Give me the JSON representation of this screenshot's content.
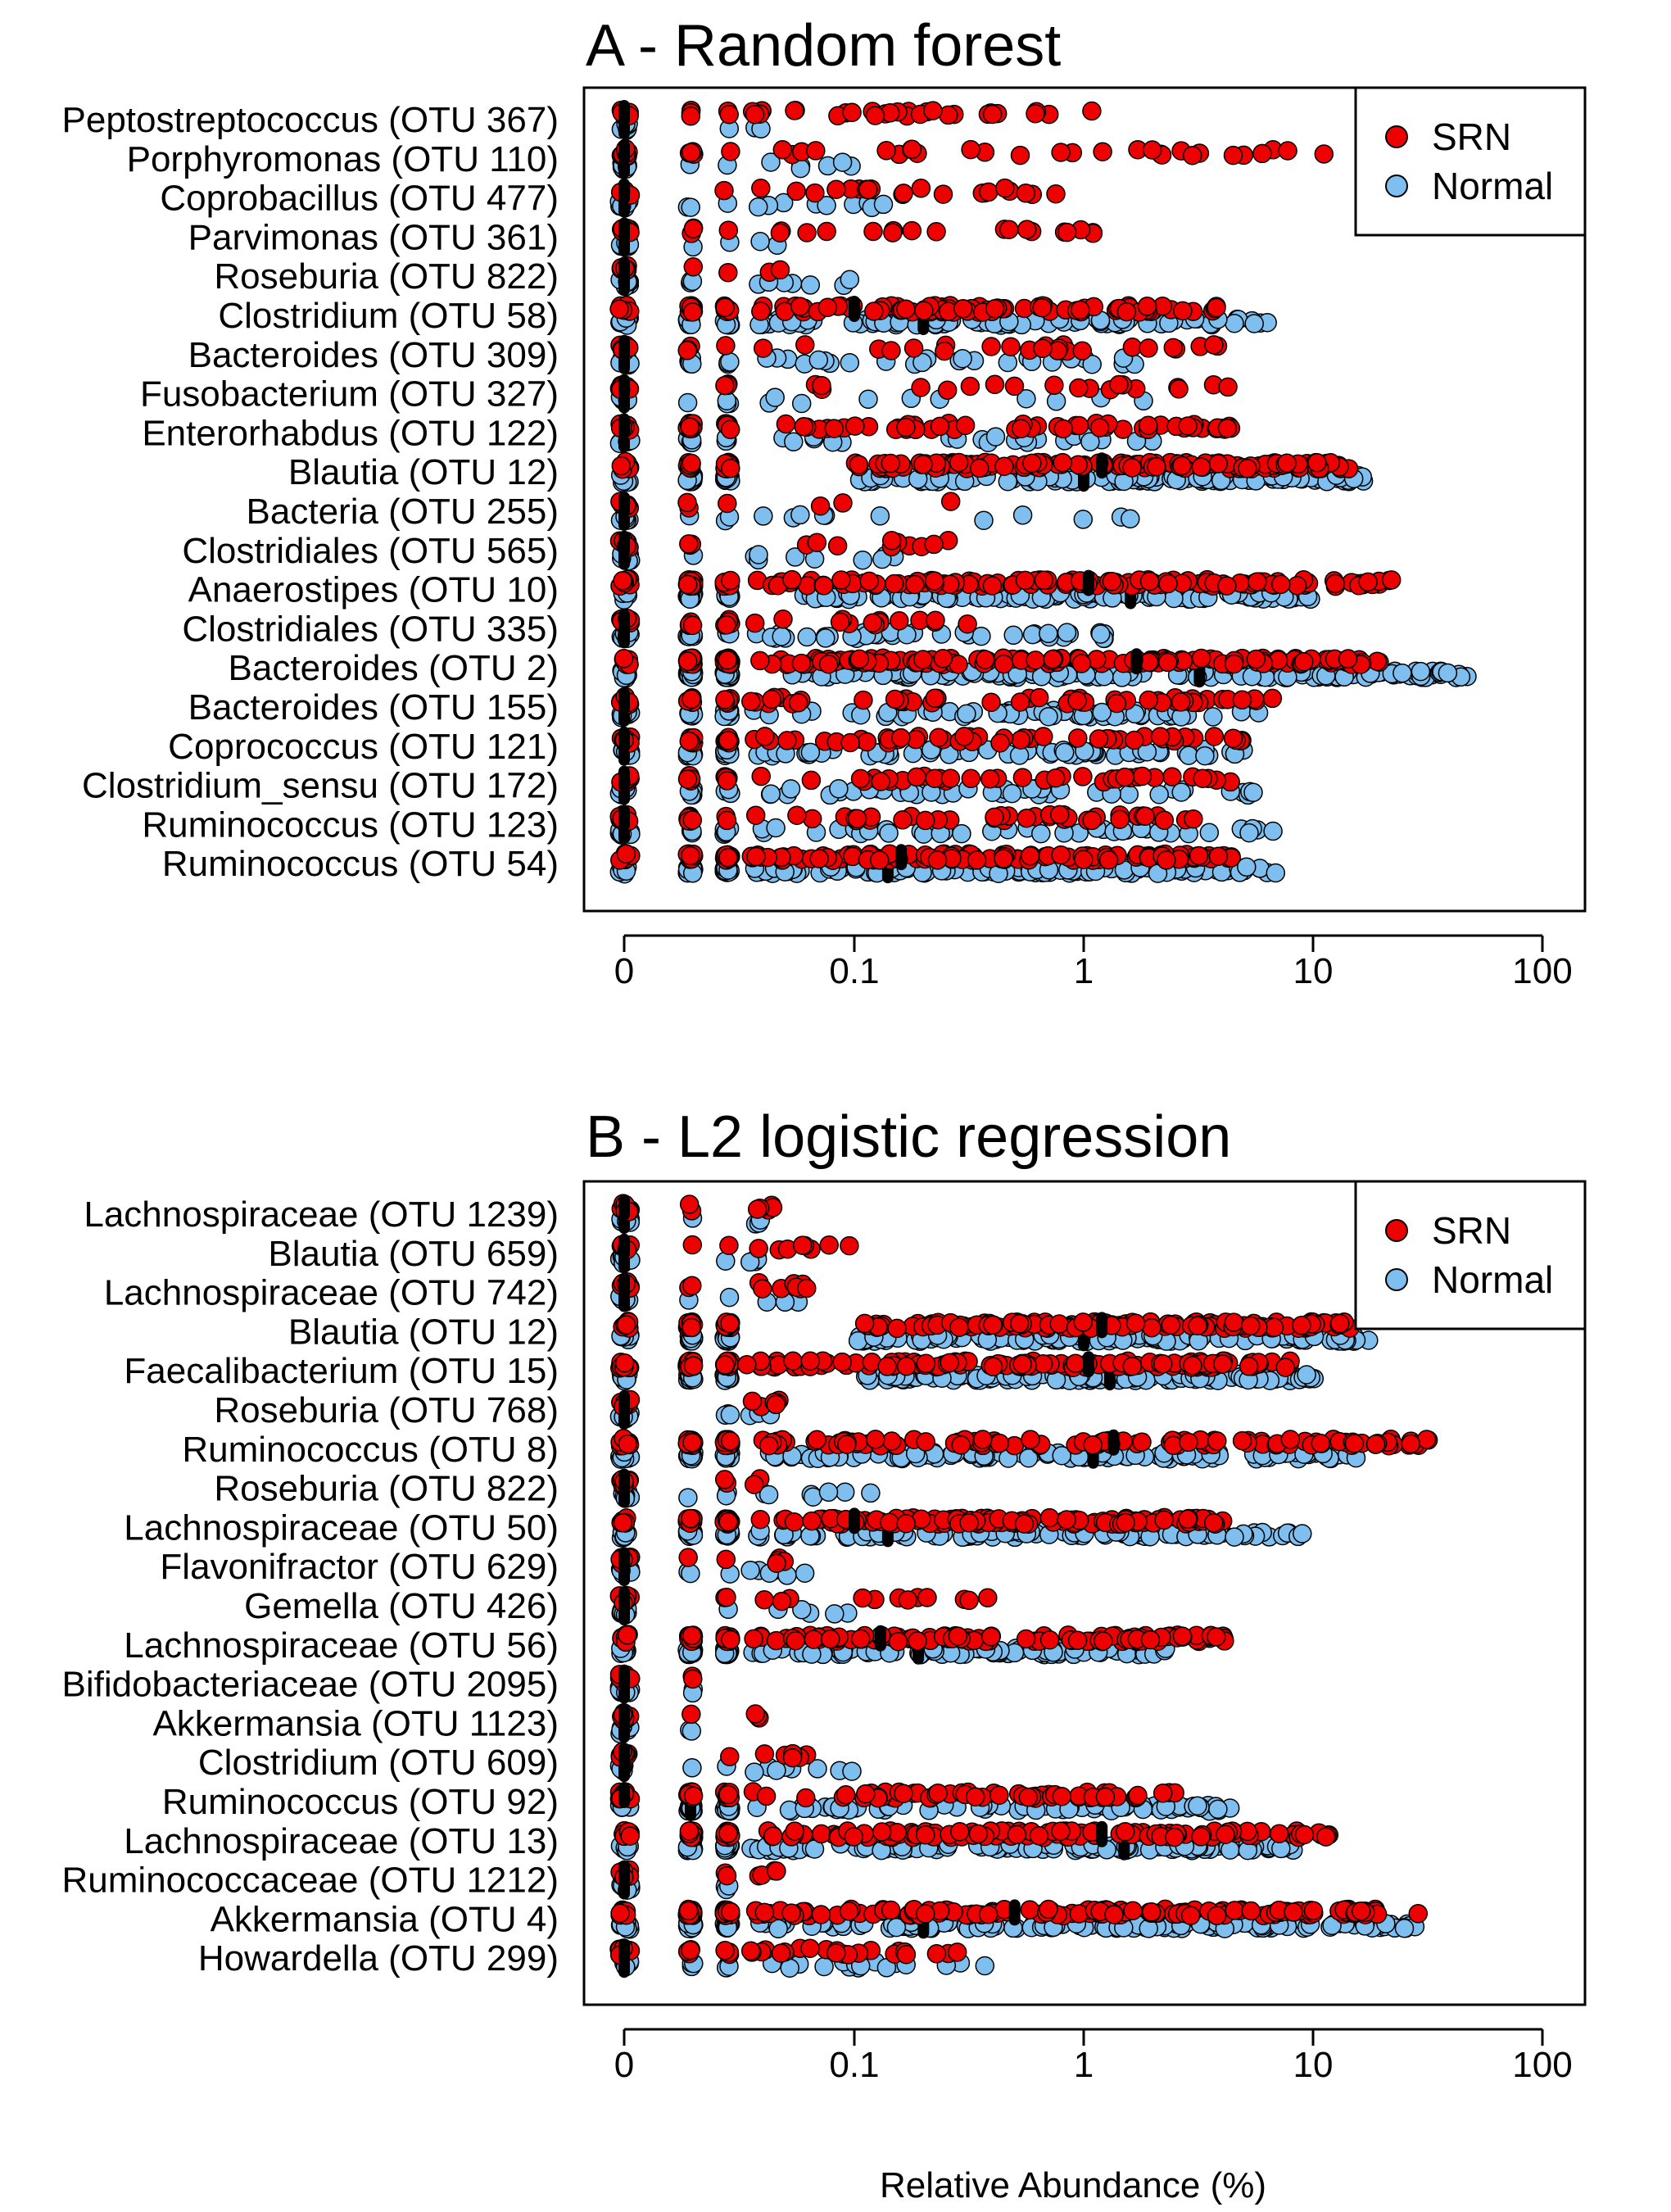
{
  "colors": {
    "srn": "#ee0000",
    "normal": "#7fbfef",
    "median": "#000000",
    "outline": "#000000"
  },
  "chart_data": [
    {
      "type": "scatter",
      "title": "A - Random forest",
      "xlabel": "",
      "xscale": "log",
      "xlim": [
        0,
        100
      ],
      "xticks": [
        "0",
        "0.1",
        "1",
        "10",
        "100"
      ],
      "legend": {
        "placement": "top-right",
        "entries": [
          "SRN",
          "Normal"
        ]
      },
      "rows": [
        {
          "label": "Peptostreptococcus (OTU 367)",
          "srn_range": [
            0.02,
            1.1
          ],
          "normal_range": [
            0.02,
            0.05
          ],
          "srn_median": 0,
          "normal_median": 0,
          "srn_n": 34,
          "normal_n": 3
        },
        {
          "label": "Porphyromonas (OTU 110)",
          "srn_range": [
            0.02,
            12
          ],
          "normal_range": [
            0.02,
            0.1
          ],
          "srn_median": 0,
          "normal_median": 0,
          "srn_n": 34,
          "normal_n": 8
        },
        {
          "label": "Coprobacillus (OTU 477)",
          "srn_range": [
            0.02,
            0.8
          ],
          "normal_range": [
            0.02,
            0.16
          ],
          "srn_median": 0,
          "normal_median": 0,
          "srn_n": 22,
          "normal_n": 12
        },
        {
          "label": "Parvimonas (OTU 361)",
          "srn_range": [
            0.02,
            1.1
          ],
          "normal_range": [
            0.02,
            0.05
          ],
          "srn_median": 0,
          "normal_median": 0,
          "srn_n": 22,
          "normal_n": 4
        },
        {
          "label": "Roseburia (OTU 822)",
          "srn_range": [
            0.02,
            0.06
          ],
          "normal_range": [
            0.02,
            0.12
          ],
          "srn_median": 0,
          "normal_median": 0,
          "srn_n": 4,
          "normal_n": 10
        },
        {
          "label": "Clostridium (OTU 58)",
          "srn_range": [
            0.02,
            4
          ],
          "normal_range": [
            0.02,
            7
          ],
          "srn_median": 0.1,
          "normal_median": 0.2,
          "srn_n": 110,
          "normal_n": 110
        },
        {
          "label": "Bacteroides (OTU 309)",
          "srn_range": [
            0.02,
            5
          ],
          "normal_range": [
            0.02,
            1.8
          ],
          "srn_median": 0,
          "normal_median": 0,
          "srn_n": 28,
          "normal_n": 34
        },
        {
          "label": "Fusobacterium (OTU 327)",
          "srn_range": [
            0.02,
            4.5
          ],
          "normal_range": [
            0.02,
            2
          ],
          "srn_median": 0,
          "normal_median": 0,
          "srn_n": 22,
          "normal_n": 14
        },
        {
          "label": "Enterorhabdus (OTU 122)",
          "srn_range": [
            0.02,
            4.5
          ],
          "normal_range": [
            0.02,
            2
          ],
          "srn_median": 0,
          "normal_median": 0,
          "srn_n": 70,
          "normal_n": 30
        },
        {
          "label": "Blautia (OTU 12)",
          "srn_range": [
            0.1,
            15
          ],
          "normal_range": [
            0.1,
            17
          ],
          "srn_median": 1.2,
          "normal_median": 1,
          "srn_n": 170,
          "normal_n": 170
        },
        {
          "label": "Bacteria (OTU 255)",
          "srn_range": [
            0.02,
            0.6
          ],
          "normal_range": [
            0.02,
            3.5
          ],
          "srn_median": 0,
          "normal_median": 0,
          "srn_n": 6,
          "normal_n": 14
        },
        {
          "label": "Clostridiales (OTU 565)",
          "srn_range": [
            0.02,
            0.3
          ],
          "normal_range": [
            0.02,
            0.2
          ],
          "srn_median": 0,
          "normal_median": 0,
          "srn_n": 14,
          "normal_n": 10
        },
        {
          "label": "Anaerostipes (OTU 10)",
          "srn_range": [
            0.03,
            24
          ],
          "normal_range": [
            0.05,
            10
          ],
          "srn_median": 1.05,
          "normal_median": 1.6,
          "srn_n": 170,
          "normal_n": 170
        },
        {
          "label": "Clostridiales (OTU 335)",
          "srn_range": [
            0.02,
            0.35
          ],
          "normal_range": [
            0.02,
            1.3
          ],
          "srn_median": 0,
          "normal_median": 0,
          "srn_n": 24,
          "normal_n": 50
        },
        {
          "label": "Bacteroides (OTU 2)",
          "srn_range": [
            0.03,
            20
          ],
          "normal_range": [
            0.05,
            50
          ],
          "srn_median": 1.7,
          "normal_median": 3.2,
          "srn_n": 200,
          "normal_n": 200
        },
        {
          "label": "Bacteroides (OTU 155)",
          "srn_range": [
            0.02,
            7
          ],
          "normal_range": [
            0.02,
            7
          ],
          "srn_median": 0,
          "normal_median": 0,
          "srn_n": 60,
          "normal_n": 80
        },
        {
          "label": "Coprococcus (OTU 121)",
          "srn_range": [
            0.02,
            5
          ],
          "normal_range": [
            0.02,
            5
          ],
          "srn_median": 0,
          "normal_median": 0,
          "srn_n": 70,
          "normal_n": 80
        },
        {
          "label": "Clostridium_sensu (OTU 172)",
          "srn_range": [
            0.02,
            4.5
          ],
          "normal_range": [
            0.02,
            7
          ],
          "srn_median": 0,
          "normal_median": 0,
          "srn_n": 50,
          "normal_n": 60
        },
        {
          "label": "Ruminococcus (OTU 123)",
          "srn_range": [
            0.02,
            3
          ],
          "normal_range": [
            0.02,
            7
          ],
          "srn_median": 0,
          "normal_median": 0,
          "srn_n": 50,
          "normal_n": 50
        },
        {
          "label": "Ruminococcus (OTU 54)",
          "srn_range": [
            0.02,
            5
          ],
          "normal_range": [
            0.02,
            7.5
          ],
          "srn_median": 0.16,
          "normal_median": 0.14,
          "srn_n": 150,
          "normal_n": 150
        }
      ]
    },
    {
      "type": "scatter",
      "title": "B - L2 logistic regression",
      "xlabel": "Relative Abundance (%)",
      "xscale": "log",
      "xlim": [
        0,
        100
      ],
      "xticks": [
        "0",
        "0.1",
        "1",
        "10",
        "100"
      ],
      "legend": {
        "placement": "top-right",
        "entries": [
          "SRN",
          "Normal"
        ]
      },
      "rows": [
        {
          "label": "Lachnospiraceae (OTU 1239)",
          "srn_range": [
            0.02,
            0.05
          ],
          "normal_range": [
            0.02,
            0.04
          ],
          "srn_median": 0,
          "normal_median": 0,
          "srn_n": 8,
          "normal_n": 4
        },
        {
          "label": "Blautia (OTU 659)",
          "srn_range": [
            0.02,
            0.1
          ],
          "normal_range": [
            0.02,
            0.04
          ],
          "srn_median": 0,
          "normal_median": 0,
          "srn_n": 10,
          "normal_n": 6
        },
        {
          "label": "Lachnospiraceae (OTU 742)",
          "srn_range": [
            0.02,
            0.08
          ],
          "normal_range": [
            0.02,
            0.06
          ],
          "srn_median": 0,
          "normal_median": 0,
          "srn_n": 10,
          "normal_n": 6
        },
        {
          "label": "Blautia (OTU 12)",
          "srn_range": [
            0.1,
            15
          ],
          "normal_range": [
            0.1,
            17
          ],
          "srn_median": 1.2,
          "normal_median": 1,
          "srn_n": 170,
          "normal_n": 170
        },
        {
          "label": "Faecalibacterium (OTU 15)",
          "srn_range": [
            0.02,
            8
          ],
          "normal_range": [
            0.1,
            10
          ],
          "srn_median": 1.05,
          "normal_median": 1.3,
          "srn_n": 170,
          "normal_n": 170
        },
        {
          "label": "Roseburia (OTU 768)",
          "srn_range": [
            0.02,
            0.05
          ],
          "normal_range": [
            0.02,
            0.05
          ],
          "srn_median": 0,
          "normal_median": 0,
          "srn_n": 6,
          "normal_n": 6
        },
        {
          "label": "Ruminococcus (OTU 8)",
          "srn_range": [
            0.02,
            33
          ],
          "normal_range": [
            0.02,
            15
          ],
          "srn_median": 1.35,
          "normal_median": 1.1,
          "srn_n": 150,
          "normal_n": 150
        },
        {
          "label": "Roseburia (OTU 822)",
          "srn_range": [
            0.02,
            0.04
          ],
          "normal_range": [
            0.02,
            0.12
          ],
          "srn_median": 0,
          "normal_median": 0,
          "srn_n": 4,
          "normal_n": 10
        },
        {
          "label": "Lachnospiraceae (OTU 50)",
          "srn_range": [
            0.02,
            4
          ],
          "normal_range": [
            0.02,
            9
          ],
          "srn_median": 0.1,
          "normal_median": 0.14,
          "srn_n": 140,
          "normal_n": 140
        },
        {
          "label": "Flavonifractor (OTU 629)",
          "srn_range": [
            0.02,
            0.05
          ],
          "normal_range": [
            0.02,
            0.06
          ],
          "srn_median": 0,
          "normal_median": 0,
          "srn_n": 6,
          "normal_n": 10
        },
        {
          "label": "Gemella (OTU 426)",
          "srn_range": [
            0.02,
            0.4
          ],
          "normal_range": [
            0.02,
            0.1
          ],
          "srn_median": 0,
          "normal_median": 0,
          "srn_n": 14,
          "normal_n": 6
        },
        {
          "label": "Lachnospiraceae (OTU 56)",
          "srn_range": [
            0.02,
            4.5
          ],
          "normal_range": [
            0.02,
            2.5
          ],
          "srn_median": 0.13,
          "normal_median": 0.19,
          "srn_n": 140,
          "normal_n": 140
        },
        {
          "label": "Bifidobacteriaceae (OTU 2095)",
          "srn_range": [
            0.02,
            0.02
          ],
          "normal_range": [
            0.02,
            0.02
          ],
          "srn_median": 0,
          "normal_median": 0,
          "srn_n": 2,
          "normal_n": 2
        },
        {
          "label": "Akkermansia (OTU 1123)",
          "srn_range": [
            0.02,
            0.04
          ],
          "normal_range": [
            0.02,
            0.02
          ],
          "srn_median": 0,
          "normal_median": 0,
          "srn_n": 4,
          "normal_n": 2
        },
        {
          "label": "Clostridium (OTU 609)",
          "srn_range": [
            0.02,
            0.07
          ],
          "normal_range": [
            0.02,
            0.1
          ],
          "srn_median": 0,
          "normal_median": 0,
          "srn_n": 8,
          "normal_n": 10
        },
        {
          "label": "Ruminococcus (OTU 92)",
          "srn_range": [
            0.02,
            3
          ],
          "normal_range": [
            0.02,
            4.5
          ],
          "srn_median": 0,
          "normal_median": 0.02,
          "srn_n": 80,
          "normal_n": 100
        },
        {
          "label": "Lachnospiraceae (OTU 13)",
          "srn_range": [
            0.02,
            12
          ],
          "normal_range": [
            0.02,
            8
          ],
          "srn_median": 1.2,
          "normal_median": 1.5,
          "srn_n": 160,
          "normal_n": 160
        },
        {
          "label": "Ruminococcaceae (OTU 1212)",
          "srn_range": [
            0.02,
            0.05
          ],
          "normal_range": [
            0.02,
            0.03
          ],
          "srn_median": 0,
          "normal_median": 0,
          "srn_n": 6,
          "normal_n": 4
        },
        {
          "label": "Akkermansia (OTU 4)",
          "srn_range": [
            0.02,
            30
          ],
          "normal_range": [
            0.02,
            28
          ],
          "srn_median": 0.5,
          "normal_median": 0.2,
          "srn_n": 180,
          "normal_n": 180
        },
        {
          "label": "Howardella (OTU 299)",
          "srn_range": [
            0.02,
            0.3
          ],
          "normal_range": [
            0.02,
            0.4
          ],
          "srn_median": 0,
          "normal_median": 0,
          "srn_n": 30,
          "normal_n": 24
        }
      ]
    }
  ]
}
